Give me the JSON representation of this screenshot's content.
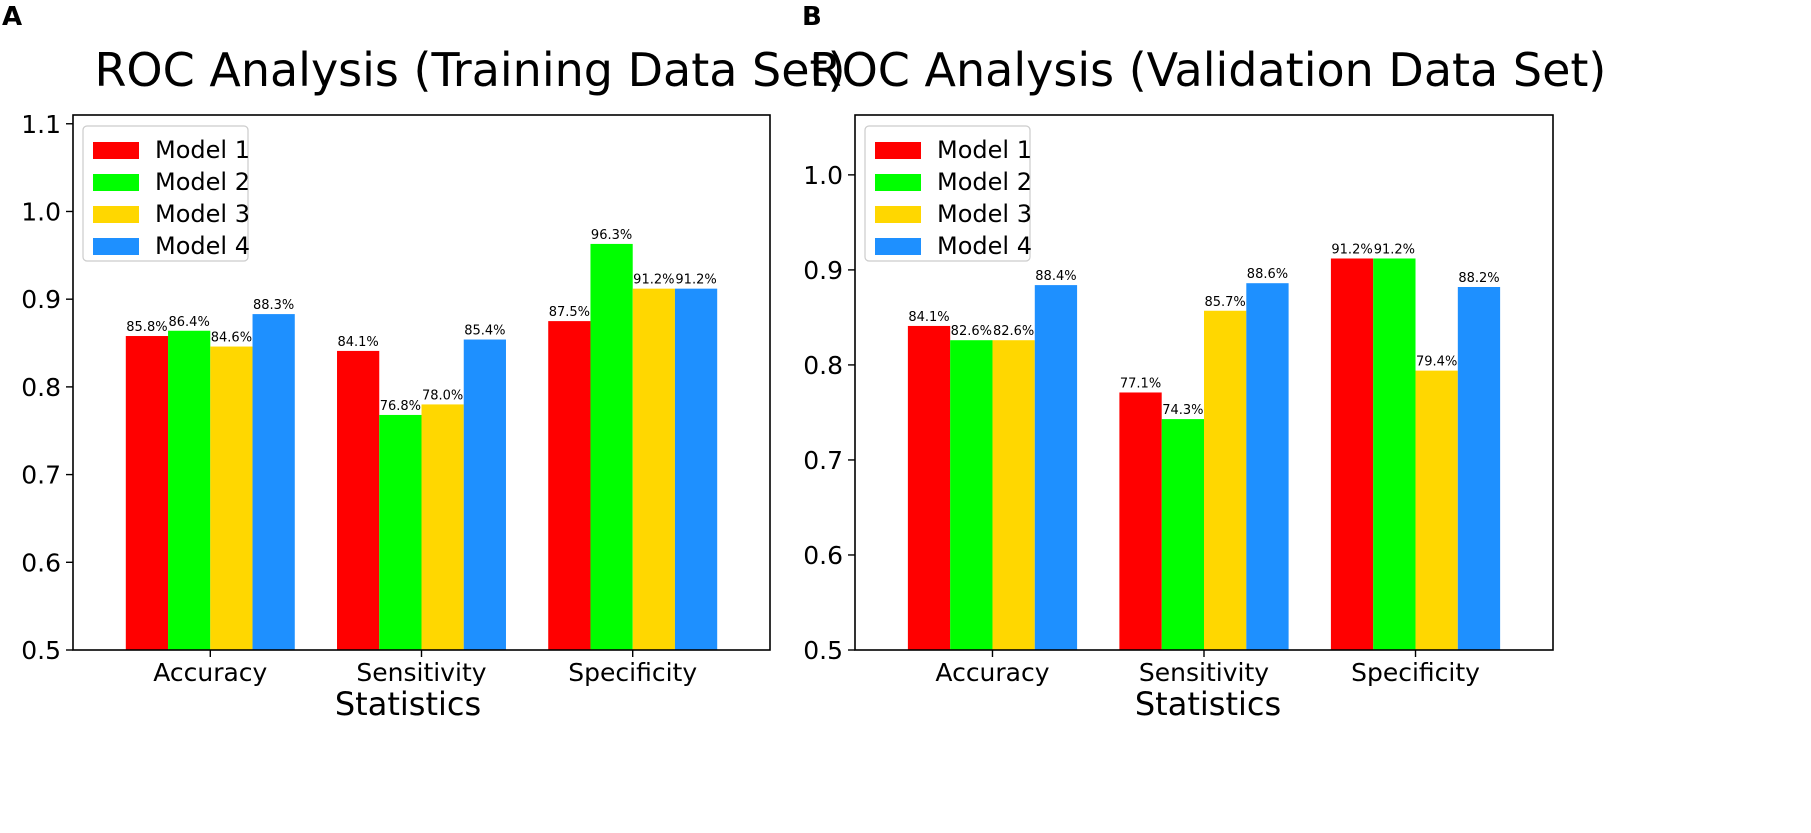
{
  "chart_data": [
    {
      "type": "bar",
      "panel": "A",
      "title": "ROC Analysis (Training Data Set)",
      "xlabel": "Statistics",
      "ylabel": "",
      "ylim": [
        0.5,
        1.11
      ],
      "yticks": [
        "0.5",
        "0.6",
        "0.7",
        "0.8",
        "0.9",
        "1.0",
        "1.1"
      ],
      "ytick_values": [
        0.5,
        0.6,
        0.7,
        0.8,
        0.9,
        1.0,
        1.1
      ],
      "categories": [
        "Accuracy",
        "Sensitivity",
        "Specificity"
      ],
      "legend_position": "top-left",
      "series": [
        {
          "name": "Model 1",
          "color": "#ff0000",
          "values": [
            0.858,
            0.841,
            0.875
          ],
          "labels": [
            "85.8%",
            "84.1%",
            "87.5%"
          ]
        },
        {
          "name": "Model 2",
          "color": "#00ff00",
          "values": [
            0.864,
            0.768,
            0.963
          ],
          "labels": [
            "86.4%",
            "76.8%",
            "96.3%"
          ]
        },
        {
          "name": "Model 3",
          "color": "#ffd700",
          "values": [
            0.846,
            0.78,
            0.912
          ],
          "labels": [
            "84.6%",
            "78.0%",
            "91.2%"
          ]
        },
        {
          "name": "Model 4",
          "color": "#1e90ff",
          "values": [
            0.883,
            0.854,
            0.912
          ],
          "labels": [
            "88.3%",
            "85.4%",
            "91.2%"
          ]
        }
      ]
    },
    {
      "type": "bar",
      "panel": "B",
      "title": "ROC Analysis (Validation Data Set)",
      "xlabel": "Statistics",
      "ylabel": "",
      "ylim": [
        0.5,
        1.063
      ],
      "yticks": [
        "0.5",
        "0.6",
        "0.7",
        "0.8",
        "0.9",
        "1.0"
      ],
      "ytick_values": [
        0.5,
        0.6,
        0.7,
        0.8,
        0.9,
        1.0
      ],
      "categories": [
        "Accuracy",
        "Sensitivity",
        "Specificity"
      ],
      "legend_position": "top-left",
      "series": [
        {
          "name": "Model 1",
          "color": "#ff0000",
          "values": [
            0.841,
            0.771,
            0.912
          ],
          "labels": [
            "84.1%",
            "77.1%",
            "91.2%"
          ]
        },
        {
          "name": "Model 2",
          "color": "#00ff00",
          "values": [
            0.826,
            0.743,
            0.912
          ],
          "labels": [
            "82.6%",
            "74.3%",
            "91.2%"
          ]
        },
        {
          "name": "Model 3",
          "color": "#ffd700",
          "values": [
            0.826,
            0.857,
            0.794
          ],
          "labels": [
            "82.6%",
            "85.7%",
            "79.4%"
          ]
        },
        {
          "name": "Model 4",
          "color": "#1e90ff",
          "values": [
            0.884,
            0.886,
            0.882
          ],
          "labels": [
            "88.4%",
            "88.6%",
            "88.2%"
          ]
        }
      ]
    }
  ]
}
